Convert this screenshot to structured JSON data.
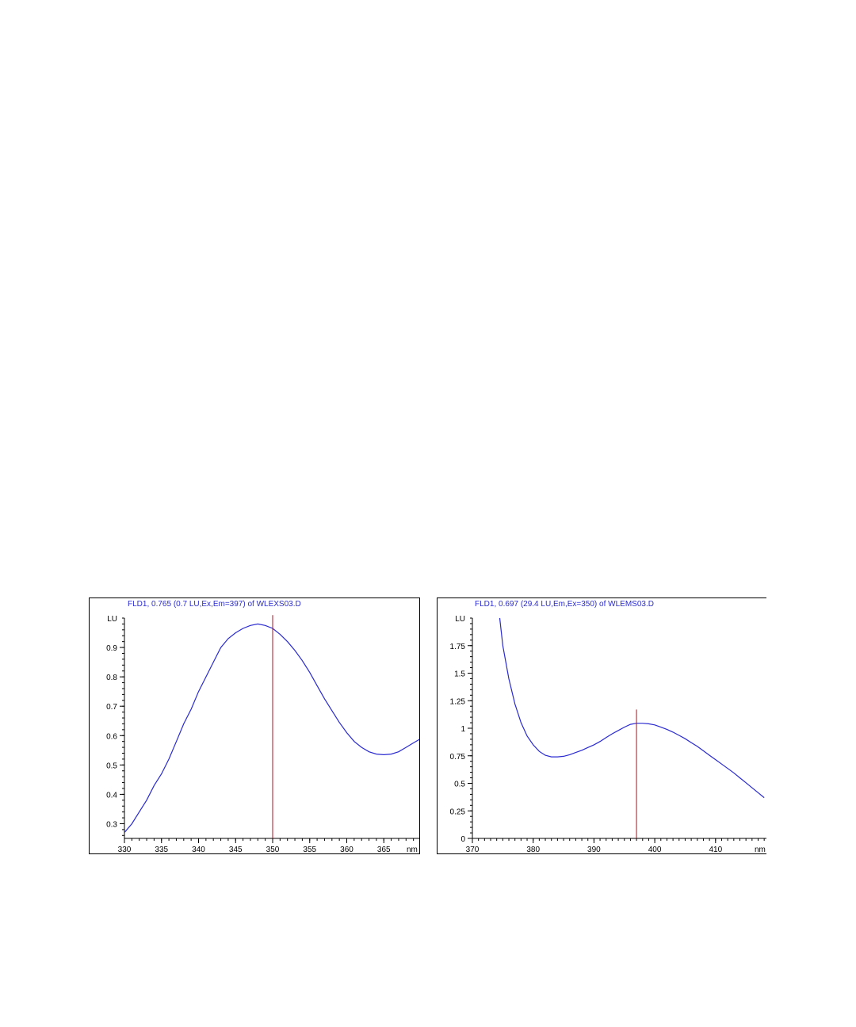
{
  "chart_data": [
    {
      "type": "line",
      "title": "FLD1, 0.765 (0.7 LU,Ex,Em=397) of WLEXS03.D",
      "xlabel": "nm",
      "ylabel": "LU",
      "xlim": [
        330,
        370
      ],
      "ylim": [
        0.25,
        1.0
      ],
      "x_ticks": [
        "330",
        "335",
        "340",
        "345",
        "350",
        "355",
        "360",
        "365"
      ],
      "y_ticks": [
        "0.3",
        "0.4",
        "0.5",
        "0.6",
        "0.7",
        "0.8",
        "0.9"
      ],
      "x_tick_minor_step": 1,
      "y_tick_minor_step": 0.02,
      "line_color": "#2a2ad0",
      "marker_color": "#b01020",
      "marker_x": 350,
      "marker_top": 1.01,
      "series": [
        {
          "x": [
            330,
            331,
            332,
            333,
            334,
            335,
            336,
            337,
            338,
            339,
            340,
            341,
            342,
            343,
            344,
            345,
            346,
            347,
            348,
            349,
            350,
            351,
            352,
            353,
            354,
            355,
            356,
            357,
            358,
            359,
            360,
            361,
            362,
            363,
            364,
            365,
            366,
            367,
            368,
            369,
            370
          ],
          "values": [
            0.27,
            0.3,
            0.34,
            0.38,
            0.43,
            0.47,
            0.52,
            0.58,
            0.64,
            0.69,
            0.75,
            0.8,
            0.85,
            0.9,
            0.93,
            0.95,
            0.965,
            0.975,
            0.98,
            0.975,
            0.965,
            0.945,
            0.92,
            0.89,
            0.855,
            0.815,
            0.77,
            0.725,
            0.685,
            0.645,
            0.61,
            0.58,
            0.56,
            0.545,
            0.537,
            0.535,
            0.537,
            0.545,
            0.56,
            0.575,
            0.59
          ]
        }
      ]
    },
    {
      "type": "line",
      "title": "FLD1, 0.697 (29.4 LU,Em,Ex=350) of WLEMS03.D",
      "xlabel": "nm",
      "ylabel": "LU",
      "xlim": [
        370,
        418.5
      ],
      "ylim": [
        0,
        2.0
      ],
      "x_ticks": [
        "370",
        "380",
        "390",
        "400",
        "410"
      ],
      "y_ticks": [
        "0",
        "0.25",
        "0.5",
        "0.75",
        "1",
        "1.25",
        "1.5",
        "1.75"
      ],
      "x_tick_minor_step": 1,
      "y_tick_minor_step": 0.05,
      "line_color": "#2a2ad0",
      "marker_color": "#b01020",
      "marker_x": 397,
      "marker_top": 1.17,
      "series": [
        {
          "x": [
            374.5,
            375,
            376,
            377,
            378,
            379,
            380,
            381,
            382,
            383,
            384,
            385,
            386,
            387,
            388,
            389,
            390,
            391,
            392,
            393,
            394,
            395,
            396,
            397,
            398,
            399,
            400,
            401,
            402,
            403,
            404,
            405,
            406,
            407,
            408,
            409,
            410,
            411,
            412,
            413,
            414,
            415,
            416,
            417,
            418
          ],
          "values": [
            2.0,
            1.75,
            1.45,
            1.22,
            1.05,
            0.93,
            0.85,
            0.79,
            0.755,
            0.74,
            0.74,
            0.745,
            0.76,
            0.78,
            0.8,
            0.825,
            0.85,
            0.88,
            0.915,
            0.95,
            0.98,
            1.01,
            1.035,
            1.045,
            1.045,
            1.04,
            1.03,
            1.01,
            0.99,
            0.965,
            0.935,
            0.905,
            0.87,
            0.835,
            0.795,
            0.755,
            0.715,
            0.675,
            0.635,
            0.595,
            0.55,
            0.505,
            0.46,
            0.415,
            0.37
          ]
        }
      ]
    }
  ]
}
